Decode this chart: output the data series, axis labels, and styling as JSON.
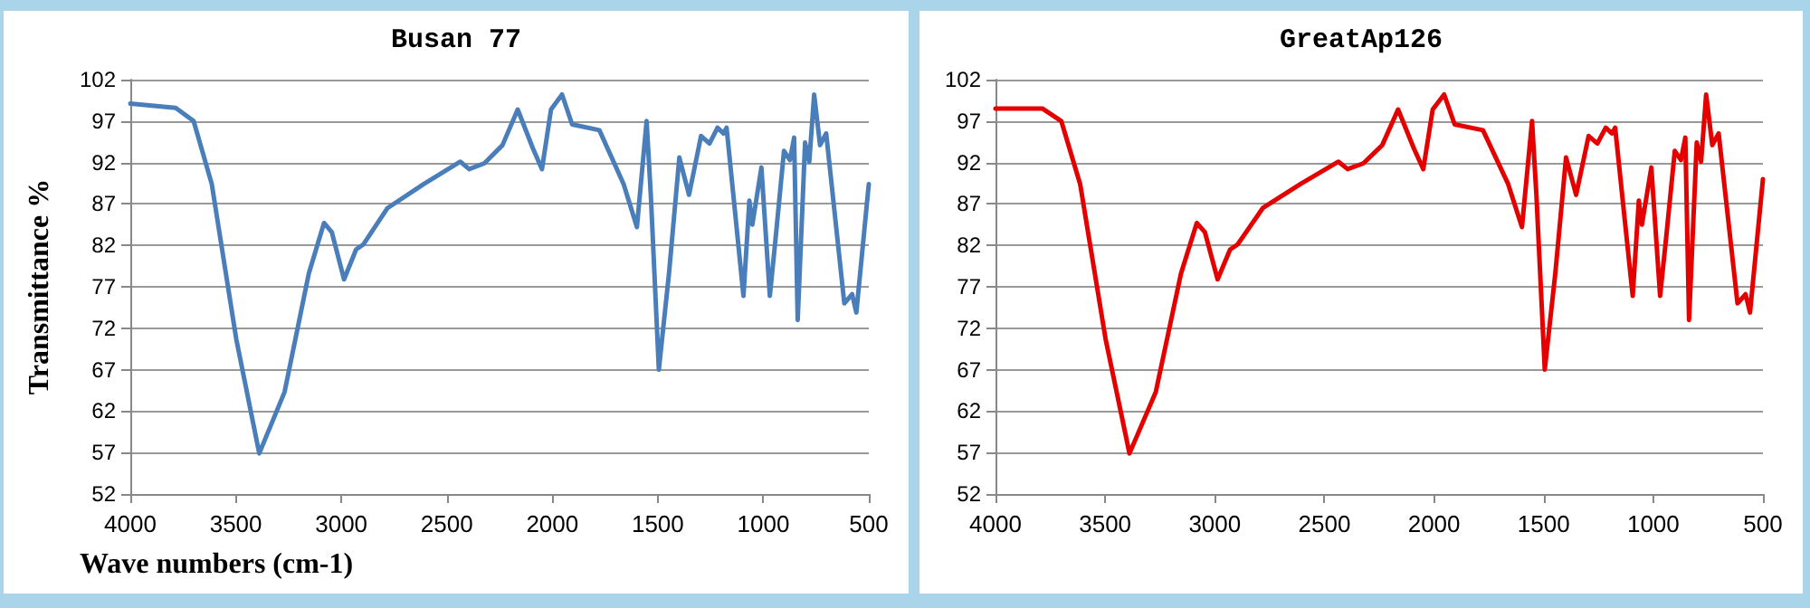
{
  "chart_data": [
    {
      "type": "line",
      "title": "Busan 77",
      "xlabel": "Wave numbers (cm-1)",
      "ylabel": "Transmittance %",
      "xlim": [
        4000,
        500
      ],
      "xticks": [
        4000,
        3500,
        3000,
        2500,
        2000,
        1500,
        1000,
        500
      ],
      "ylim": [
        52,
        102
      ],
      "yticks": [
        52,
        57,
        62,
        67,
        72,
        77,
        82,
        87,
        92,
        97,
        102
      ],
      "grid": "y",
      "marker": "none",
      "line_style": "solid",
      "x": [
        4000,
        3785,
        3700,
        3614,
        3498,
        3389,
        3269,
        3154,
        3082,
        3045,
        2987,
        2930,
        2896,
        2781,
        2609,
        2436,
        2394,
        2322,
        2236,
        2164,
        2092,
        2049,
        2006,
        1954,
        1906,
        1777,
        1662,
        1599,
        1553,
        1533,
        1495,
        1447,
        1398,
        1352,
        1295,
        1255,
        1217,
        1189,
        1174,
        1094,
        1066,
        1052,
        1009,
        969,
        940,
        902,
        874,
        854,
        837,
        802,
        782,
        759,
        731,
        702,
        616,
        579,
        559,
        500
      ],
      "series": [
        {
          "color": "#4a7ebb",
          "values": [
            99.1,
            98.6,
            97,
            89.4,
            70.7,
            56.9,
            64.3,
            78.6,
            84.7,
            83.6,
            77.9,
            81.5,
            82.1,
            86.5,
            89.4,
            92.1,
            91.2,
            91.9,
            94.1,
            98.4,
            93.7,
            91.2,
            98.4,
            100.2,
            96.6,
            95.9,
            89.4,
            84.2,
            97,
            88,
            67,
            78.6,
            92.6,
            88.1,
            95.2,
            94.3,
            96.2,
            95.5,
            96.2,
            75.9,
            87.4,
            84.5,
            91.4,
            75.9,
            83.3,
            93.4,
            92.3,
            95,
            73,
            94.4,
            92.1,
            100.2,
            94.1,
            95.5,
            75,
            76.1,
            73.9,
            89.4
          ]
        }
      ]
    },
    {
      "type": "line",
      "title": "GreatAp126",
      "xlim": [
        4000,
        500
      ],
      "xticks": [
        4000,
        3500,
        3000,
        2500,
        2000,
        1500,
        1000,
        500
      ],
      "ylim": [
        52,
        102
      ],
      "yticks": [
        52,
        57,
        62,
        67,
        72,
        77,
        82,
        87,
        92,
        97,
        102
      ],
      "grid": "y",
      "marker": "none",
      "line_style": "solid",
      "x": [
        4000,
        3785,
        3700,
        3614,
        3498,
        3389,
        3269,
        3154,
        3082,
        3045,
        2987,
        2930,
        2896,
        2781,
        2609,
        2436,
        2394,
        2322,
        2236,
        2164,
        2092,
        2049,
        2006,
        1954,
        1906,
        1777,
        1662,
        1599,
        1553,
        1533,
        1495,
        1447,
        1398,
        1352,
        1295,
        1255,
        1217,
        1189,
        1174,
        1094,
        1066,
        1052,
        1009,
        969,
        940,
        902,
        874,
        854,
        837,
        802,
        782,
        759,
        731,
        702,
        616,
        579,
        559,
        500
      ],
      "series": [
        {
          "color": "#e50000",
          "values": [
            98.5,
            98.5,
            97,
            89.4,
            70.7,
            56.9,
            64.3,
            78.6,
            84.7,
            83.6,
            77.9,
            81.5,
            82.1,
            86.5,
            89.4,
            92.1,
            91.2,
            91.9,
            94.1,
            98.4,
            93.7,
            91.2,
            98.4,
            100.2,
            96.6,
            95.9,
            89.4,
            84.2,
            97,
            88,
            67,
            78.6,
            92.6,
            88.1,
            95.2,
            94.3,
            96.2,
            95.5,
            96.2,
            75.9,
            87.4,
            84.5,
            91.4,
            75.9,
            83.3,
            93.4,
            92.3,
            95,
            73,
            94.4,
            92.1,
            100.2,
            94.1,
            95.5,
            75,
            76.1,
            73.9,
            90
          ]
        }
      ]
    }
  ]
}
